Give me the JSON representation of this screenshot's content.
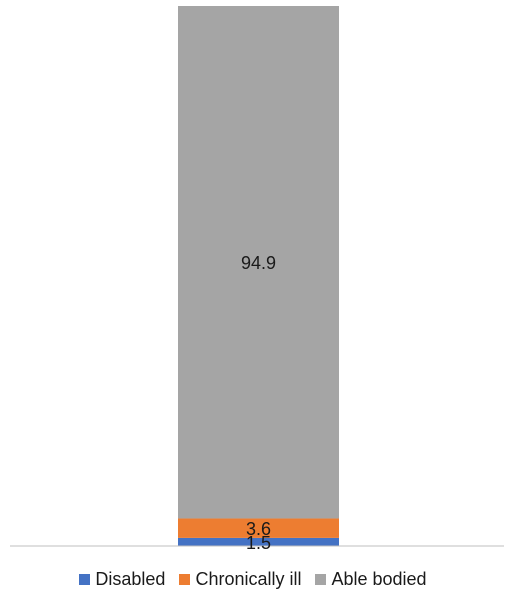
{
  "chart_data": {
    "type": "bar",
    "stacked": true,
    "categories": [
      ""
    ],
    "series": [
      {
        "name": "Disabled",
        "values": [
          1.5
        ],
        "color": "#4472C4"
      },
      {
        "name": "Chronically ill",
        "values": [
          3.6
        ],
        "color": "#ED7D31"
      },
      {
        "name": "Able bodied",
        "values": [
          94.9
        ],
        "color": "#A5A5A5"
      }
    ],
    "data_labels": [
      "1.5",
      "3.6",
      "94.9"
    ],
    "title": "",
    "xlabel": "",
    "ylabel": "",
    "ylim": [
      0,
      100
    ],
    "grid": false,
    "legend_position": "bottom"
  }
}
